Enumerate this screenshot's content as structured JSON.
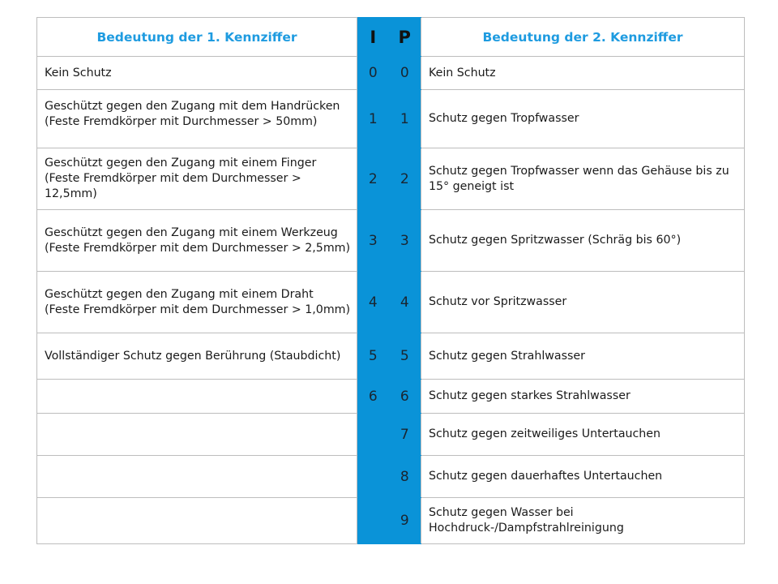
{
  "table": {
    "header": {
      "left": "Bedeutung der 1. Kennziffer",
      "code_i": "I",
      "code_p": "P",
      "right": "Bedeutung der 2. Kennziffer"
    },
    "rows": [
      {
        "left": "Kein Schutz",
        "i": "0",
        "p": "0",
        "right": "Kein Schutz"
      },
      {
        "left": "Geschützt gegen den Zugang mit dem Handrücken (Feste Fremdkörper mit Durchmesser > 50mm)",
        "i": "1",
        "p": "1",
        "right": "Schutz gegen Tropfwasser"
      },
      {
        "left": "Geschützt gegen den Zugang mit einem Finger (Feste Fremdkörper mit dem Durchmesser > 12,5mm)",
        "i": "2",
        "p": "2",
        "right": "Schutz gegen Tropfwasser wenn das Gehäuse bis zu 15° geneigt ist"
      },
      {
        "left": "Geschützt gegen den Zugang mit einem Werkzeug (Feste Fremdkörper mit dem Durchmesser > 2,5mm)",
        "i": "3",
        "p": "3",
        "right": "Schutz gegen Spritzwasser (Schräg bis 60°)"
      },
      {
        "left": "Geschützt gegen den Zugang mit einem Draht (Feste Fremdkörper mit dem Durchmesser > 1,0mm)",
        "i": "4",
        "p": "4",
        "right": "Schutz vor Spritzwasser"
      },
      {
        "left": "Vollständiger Schutz gegen Berührung (Staubdicht)",
        "i": "5",
        "p": "5",
        "right": "Schutz gegen Strahlwasser"
      },
      {
        "left": "",
        "i": "6",
        "p": "6",
        "right": "Schutz gegen starkes Strahlwasser"
      },
      {
        "left": "",
        "i": "",
        "p": "7",
        "right": "Schutz gegen zeitweiliges Untertauchen"
      },
      {
        "left": "",
        "i": "",
        "p": "8",
        "right": "Schutz gegen dauerhaftes Untertauchen"
      },
      {
        "left": "",
        "i": "",
        "p": "9",
        "right": "Schutz gegen Wasser bei Hochdruck-/Dampfstrahlreinigung"
      }
    ]
  },
  "colors": {
    "header_text": "#1e9be0",
    "code_column_bg": "#0a93d8",
    "border": "#bdbdbd"
  }
}
